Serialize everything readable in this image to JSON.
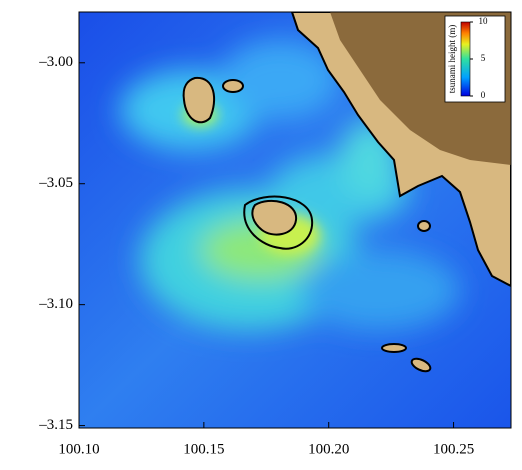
{
  "chart_data": {
    "type": "map",
    "xlim": [
      100.1,
      100.273
    ],
    "ylim": [
      -3.151,
      -2.979
    ],
    "xticks": [
      {
        "value": 100.1,
        "label": "100.10"
      },
      {
        "value": 100.15,
        "label": "100.15"
      },
      {
        "value": 100.2,
        "label": "100.20"
      },
      {
        "value": 100.25,
        "label": "100.25"
      }
    ],
    "yticks": [
      {
        "value": -3.0,
        "label": "–3.00"
      },
      {
        "value": -3.05,
        "label": "–3.05"
      },
      {
        "value": -3.1,
        "label": "–3.10"
      },
      {
        "value": -3.15,
        "label": "–3.15"
      }
    ],
    "colorbar": {
      "label": "tsunami height (m)",
      "lim": [
        0,
        10
      ],
      "ticks": [
        0,
        5,
        10
      ]
    }
  }
}
